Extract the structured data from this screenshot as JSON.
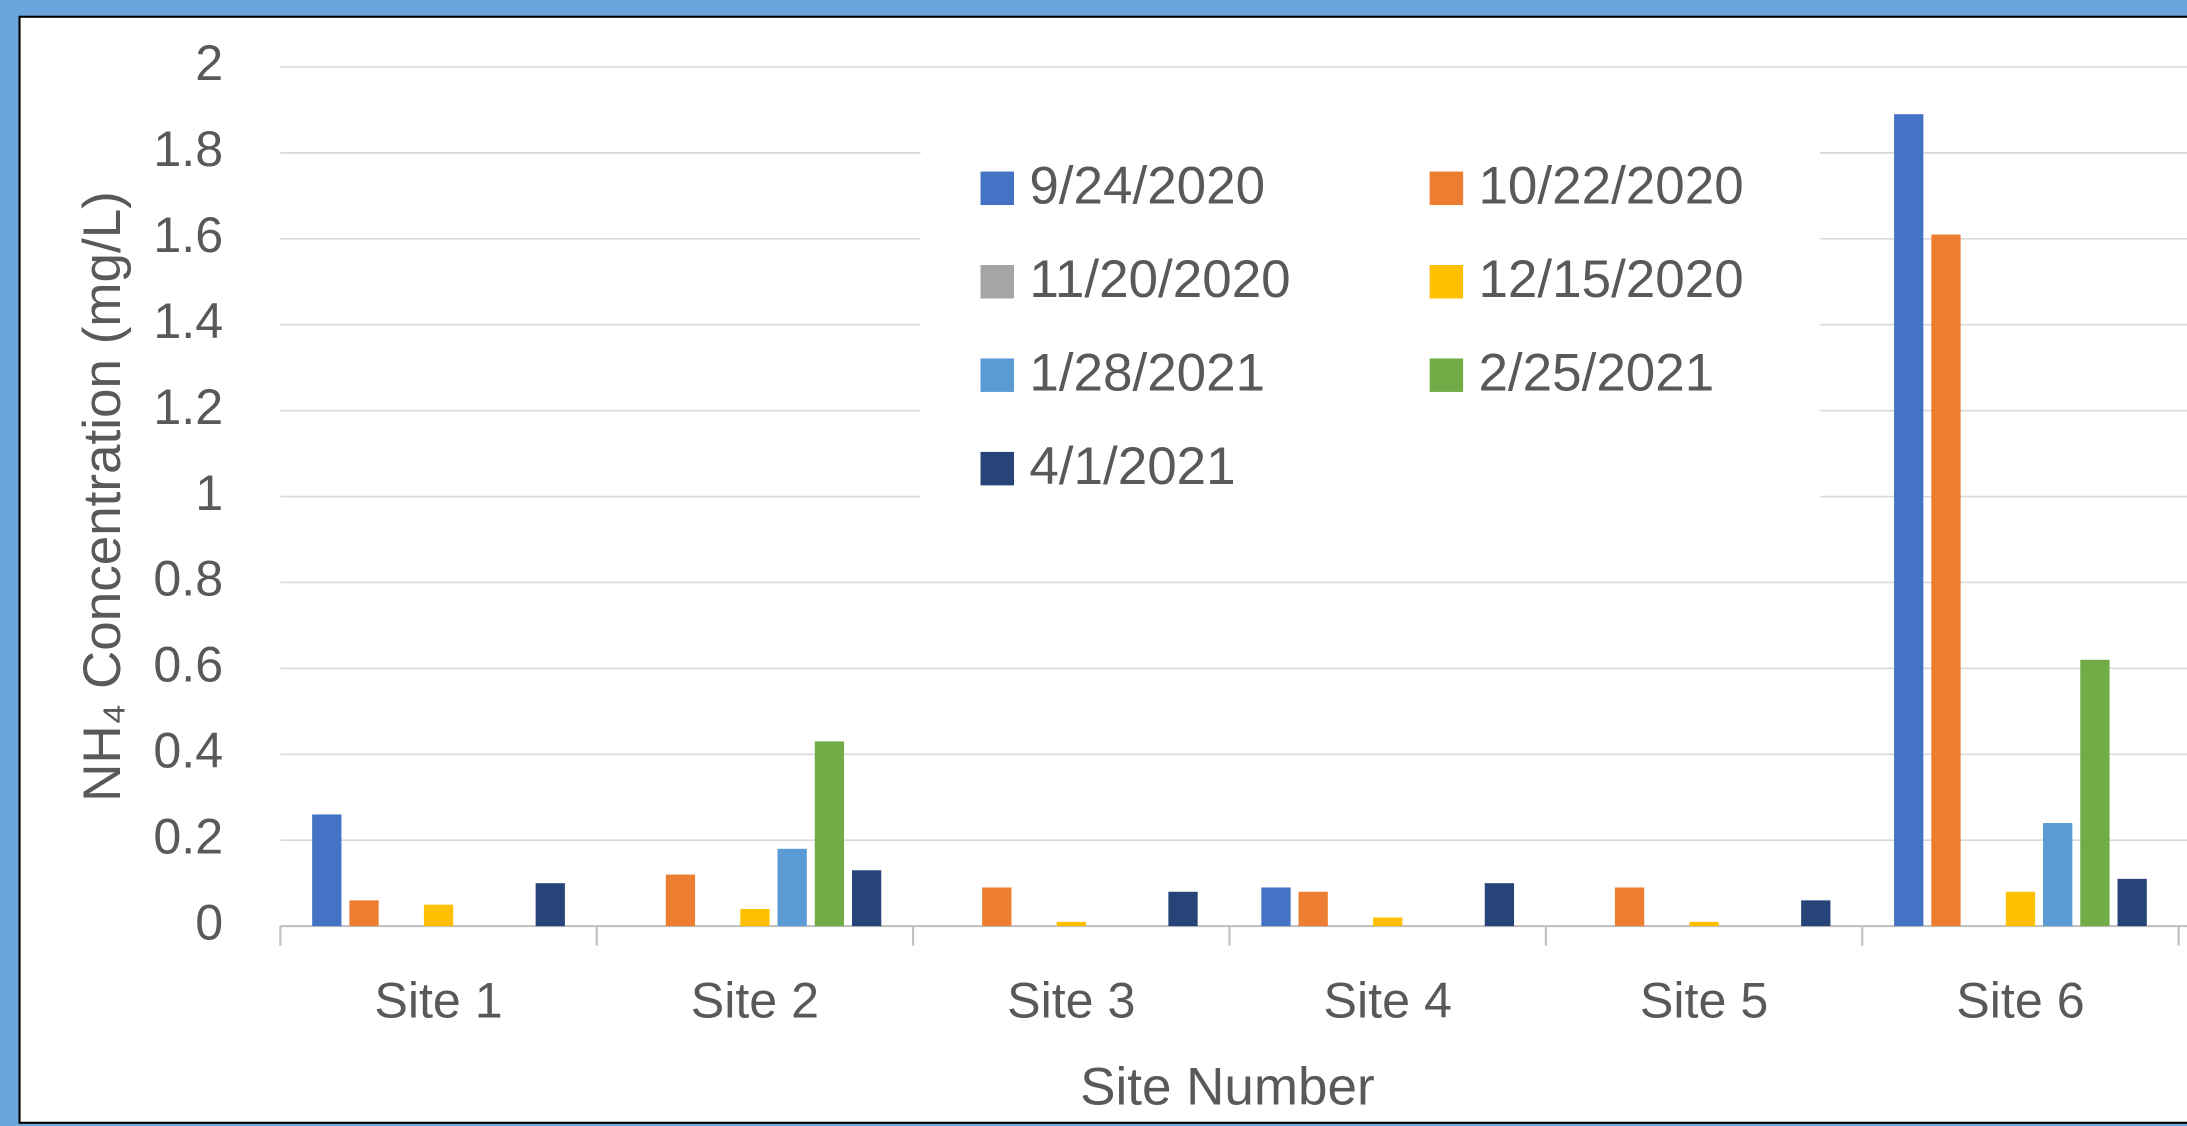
{
  "chart_data": {
    "type": "bar",
    "x_label": "Site Number",
    "y_label": "NH₄ Concentration (mg/L)",
    "categories": [
      "Site 1",
      "Site 2",
      "Site 3",
      "Site 4",
      "Site 5",
      "Site 6"
    ],
    "series": [
      {
        "name": "9/24/2020",
        "color": "#4472c4",
        "values": [
          0.26,
          0,
          0,
          0.09,
          0,
          1.89
        ]
      },
      {
        "name": "10/22/2020",
        "color": "#ed7d31",
        "values": [
          0.06,
          0.12,
          0.09,
          0.08,
          0.09,
          1.61
        ]
      },
      {
        "name": "11/20/2020",
        "color": "#a5a5a5",
        "values": [
          0,
          0,
          0,
          0,
          0,
          0
        ]
      },
      {
        "name": "12/15/2020",
        "color": "#ffc000",
        "values": [
          0.05,
          0.04,
          0.01,
          0.02,
          0.01,
          0.08
        ]
      },
      {
        "name": "1/28/2021",
        "color": "#5b9bd5",
        "values": [
          0,
          0.18,
          0,
          0,
          0,
          0.24
        ]
      },
      {
        "name": "2/25/2021",
        "color": "#70ad47",
        "values": [
          0,
          0.43,
          0,
          0,
          0,
          0.62
        ]
      },
      {
        "name": "4/1/2021",
        "color": "#264478",
        "values": [
          0.1,
          0.13,
          0.08,
          0.1,
          0.06,
          0.11
        ]
      }
    ],
    "ylim": [
      0,
      2
    ],
    "yticks": [
      0,
      0.2,
      0.4,
      0.6,
      0.8,
      1,
      1.2,
      1.4,
      1.6,
      1.8,
      2
    ],
    "grid": true,
    "legend": "top-center"
  }
}
